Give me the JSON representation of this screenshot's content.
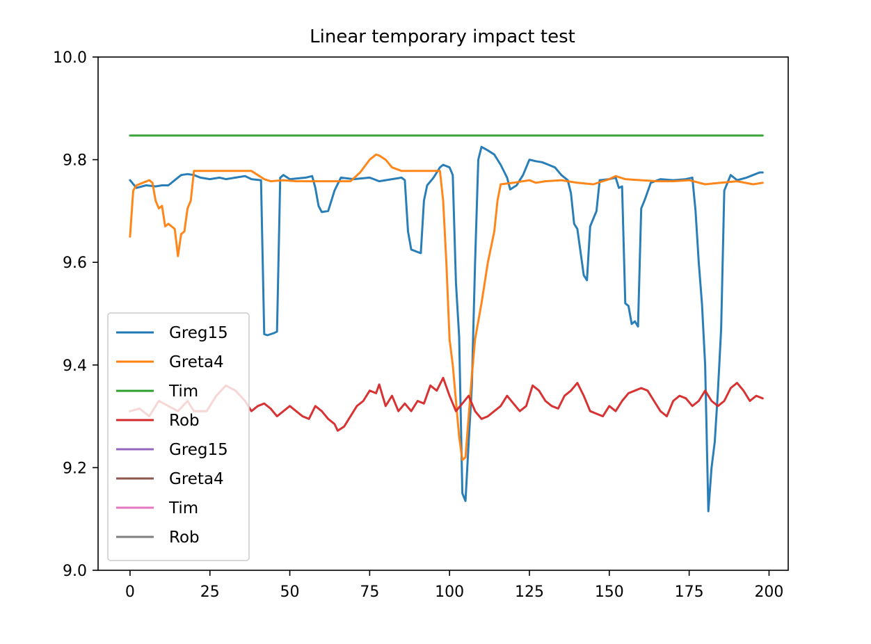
{
  "chart_data": {
    "type": "line",
    "title": "Linear temporary impact test",
    "xlabel": "",
    "ylabel": "",
    "xlim": [
      -10,
      206
    ],
    "ylim": [
      9.0,
      10.0
    ],
    "xticks": [
      0,
      25,
      50,
      75,
      100,
      125,
      150,
      175,
      200
    ],
    "yticks": [
      9.0,
      9.2,
      9.4,
      9.6,
      9.8,
      10.0
    ],
    "xtick_labels": [
      "0",
      "25",
      "50",
      "75",
      "100",
      "125",
      "150",
      "175",
      "200"
    ],
    "ytick_labels": [
      "9.0",
      "9.2",
      "9.4",
      "9.6",
      "9.8",
      "10.0"
    ],
    "grid": false,
    "legend_position": "lower-left",
    "series": [
      {
        "name": "Greg15",
        "color": "#1f77b4",
        "points": [
          [
            0,
            9.76
          ],
          [
            2,
            9.745
          ],
          [
            5,
            9.75
          ],
          [
            8,
            9.748
          ],
          [
            10,
            9.75
          ],
          [
            12,
            9.75
          ],
          [
            14,
            9.76
          ],
          [
            16,
            9.77
          ],
          [
            18,
            9.772
          ],
          [
            20,
            9.77
          ],
          [
            22,
            9.765
          ],
          [
            25,
            9.762
          ],
          [
            28,
            9.765
          ],
          [
            30,
            9.762
          ],
          [
            33,
            9.765
          ],
          [
            36,
            9.768
          ],
          [
            38,
            9.762
          ],
          [
            41,
            9.76
          ],
          [
            42,
            9.46
          ],
          [
            43,
            9.458
          ],
          [
            45,
            9.462
          ],
          [
            46,
            9.465
          ],
          [
            47,
            9.765
          ],
          [
            48,
            9.77
          ],
          [
            50,
            9.762
          ],
          [
            55,
            9.765
          ],
          [
            57,
            9.768
          ],
          [
            58,
            9.745
          ],
          [
            59,
            9.71
          ],
          [
            60,
            9.698
          ],
          [
            62,
            9.7
          ],
          [
            64,
            9.74
          ],
          [
            66,
            9.765
          ],
          [
            70,
            9.762
          ],
          [
            75,
            9.765
          ],
          [
            78,
            9.758
          ],
          [
            80,
            9.76
          ],
          [
            85,
            9.765
          ],
          [
            86,
            9.76
          ],
          [
            87,
            9.66
          ],
          [
            88,
            9.625
          ],
          [
            90,
            9.62
          ],
          [
            91,
            9.618
          ],
          [
            92,
            9.72
          ],
          [
            93,
            9.75
          ],
          [
            95,
            9.765
          ],
          [
            97,
            9.785
          ],
          [
            98,
            9.79
          ],
          [
            100,
            9.785
          ],
          [
            101,
            9.77
          ],
          [
            102,
            9.56
          ],
          [
            103,
            9.455
          ],
          [
            104,
            9.15
          ],
          [
            105,
            9.135
          ],
          [
            106,
            9.25
          ],
          [
            107,
            9.36
          ],
          [
            108,
            9.6
          ],
          [
            109,
            9.8
          ],
          [
            110,
            9.825
          ],
          [
            112,
            9.818
          ],
          [
            114,
            9.81
          ],
          [
            116,
            9.79
          ],
          [
            118,
            9.765
          ],
          [
            119,
            9.742
          ],
          [
            121,
            9.75
          ],
          [
            123,
            9.77
          ],
          [
            125,
            9.8
          ],
          [
            127,
            9.797
          ],
          [
            129,
            9.795
          ],
          [
            131,
            9.79
          ],
          [
            133,
            9.785
          ],
          [
            135,
            9.77
          ],
          [
            137,
            9.76
          ],
          [
            138,
            9.735
          ],
          [
            139,
            9.675
          ],
          [
            140,
            9.665
          ],
          [
            142,
            9.575
          ],
          [
            143,
            9.565
          ],
          [
            144,
            9.67
          ],
          [
            146,
            9.7
          ],
          [
            147,
            9.76
          ],
          [
            150,
            9.762
          ],
          [
            152,
            9.765
          ],
          [
            153,
            9.745
          ],
          [
            154,
            9.748
          ],
          [
            155,
            9.52
          ],
          [
            156,
            9.515
          ],
          [
            157,
            9.48
          ],
          [
            158,
            9.485
          ],
          [
            159,
            9.475
          ],
          [
            160,
            9.705
          ],
          [
            161,
            9.72
          ],
          [
            163,
            9.755
          ],
          [
            166,
            9.762
          ],
          [
            170,
            9.76
          ],
          [
            174,
            9.762
          ],
          [
            176,
            9.765
          ],
          [
            177,
            9.7
          ],
          [
            178,
            9.6
          ],
          [
            179,
            9.52
          ],
          [
            180,
            9.4
          ],
          [
            181,
            9.115
          ],
          [
            182,
            9.2
          ],
          [
            183,
            9.25
          ],
          [
            184,
            9.35
          ],
          [
            185,
            9.47
          ],
          [
            186,
            9.74
          ],
          [
            188,
            9.77
          ],
          [
            190,
            9.76
          ],
          [
            193,
            9.765
          ],
          [
            195,
            9.77
          ],
          [
            197,
            9.775
          ],
          [
            198,
            9.775
          ]
        ]
      },
      {
        "name": "Greta4",
        "color": "#ff7f0e",
        "points": [
          [
            0,
            9.65
          ],
          [
            1,
            9.74
          ],
          [
            2,
            9.75
          ],
          [
            4,
            9.755
          ],
          [
            6,
            9.76
          ],
          [
            7,
            9.755
          ],
          [
            8,
            9.72
          ],
          [
            9,
            9.705
          ],
          [
            10,
            9.71
          ],
          [
            11,
            9.67
          ],
          [
            12,
            9.675
          ],
          [
            13,
            9.67
          ],
          [
            14,
            9.665
          ],
          [
            15,
            9.612
          ],
          [
            16,
            9.655
          ],
          [
            17,
            9.66
          ],
          [
            18,
            9.705
          ],
          [
            19,
            9.72
          ],
          [
            20,
            9.778
          ],
          [
            25,
            9.778
          ],
          [
            30,
            9.778
          ],
          [
            35,
            9.778
          ],
          [
            38,
            9.778
          ],
          [
            40,
            9.77
          ],
          [
            42,
            9.762
          ],
          [
            44,
            9.758
          ],
          [
            48,
            9.76
          ],
          [
            52,
            9.758
          ],
          [
            56,
            9.758
          ],
          [
            60,
            9.758
          ],
          [
            65,
            9.758
          ],
          [
            69,
            9.758
          ],
          [
            72,
            9.775
          ],
          [
            75,
            9.8
          ],
          [
            77,
            9.81
          ],
          [
            78,
            9.808
          ],
          [
            80,
            9.8
          ],
          [
            82,
            9.785
          ],
          [
            85,
            9.778
          ],
          [
            90,
            9.778
          ],
          [
            95,
            9.778
          ],
          [
            97,
            9.778
          ],
          [
            98,
            9.72
          ],
          [
            99,
            9.6
          ],
          [
            100,
            9.45
          ],
          [
            101,
            9.4
          ],
          [
            102,
            9.33
          ],
          [
            103,
            9.26
          ],
          [
            104,
            9.215
          ],
          [
            105,
            9.22
          ],
          [
            106,
            9.3
          ],
          [
            107,
            9.38
          ],
          [
            108,
            9.45
          ],
          [
            110,
            9.52
          ],
          [
            112,
            9.6
          ],
          [
            114,
            9.66
          ],
          [
            115,
            9.72
          ],
          [
            116,
            9.752
          ],
          [
            120,
            9.755
          ],
          [
            125,
            9.76
          ],
          [
            127,
            9.755
          ],
          [
            130,
            9.758
          ],
          [
            135,
            9.76
          ],
          [
            140,
            9.755
          ],
          [
            145,
            9.752
          ],
          [
            150,
            9.762
          ],
          [
            152,
            9.768
          ],
          [
            155,
            9.762
          ],
          [
            160,
            9.76
          ],
          [
            165,
            9.758
          ],
          [
            170,
            9.758
          ],
          [
            175,
            9.76
          ],
          [
            180,
            9.752
          ],
          [
            185,
            9.755
          ],
          [
            190,
            9.758
          ],
          [
            195,
            9.752
          ],
          [
            198,
            9.755
          ]
        ]
      },
      {
        "name": "Tim",
        "color": "#2ca02c",
        "points": [
          [
            0,
            9.847
          ],
          [
            25,
            9.847
          ],
          [
            50,
            9.847
          ],
          [
            75,
            9.847
          ],
          [
            100,
            9.847
          ],
          [
            125,
            9.847
          ],
          [
            150,
            9.847
          ],
          [
            175,
            9.847
          ],
          [
            198,
            9.847
          ]
        ]
      },
      {
        "name": "Rob",
        "color": "#d62728",
        "points": [
          [
            0,
            9.31
          ],
          [
            3,
            9.315
          ],
          [
            6,
            9.3
          ],
          [
            9,
            9.33
          ],
          [
            12,
            9.32
          ],
          [
            15,
            9.31
          ],
          [
            18,
            9.33
          ],
          [
            20,
            9.31
          ],
          [
            24,
            9.31
          ],
          [
            27,
            9.34
          ],
          [
            30,
            9.36
          ],
          [
            33,
            9.35
          ],
          [
            36,
            9.33
          ],
          [
            38,
            9.31
          ],
          [
            40,
            9.32
          ],
          [
            42,
            9.325
          ],
          [
            44,
            9.315
          ],
          [
            46,
            9.3
          ],
          [
            48,
            9.31
          ],
          [
            50,
            9.32
          ],
          [
            52,
            9.31
          ],
          [
            54,
            9.3
          ],
          [
            56,
            9.295
          ],
          [
            58,
            9.32
          ],
          [
            60,
            9.31
          ],
          [
            62,
            9.295
          ],
          [
            64,
            9.285
          ],
          [
            65,
            9.272
          ],
          [
            67,
            9.28
          ],
          [
            69,
            9.3
          ],
          [
            71,
            9.32
          ],
          [
            73,
            9.33
          ],
          [
            75,
            9.35
          ],
          [
            77,
            9.345
          ],
          [
            78,
            9.362
          ],
          [
            80,
            9.32
          ],
          [
            82,
            9.34
          ],
          [
            84,
            9.31
          ],
          [
            86,
            9.325
          ],
          [
            88,
            9.31
          ],
          [
            90,
            9.33
          ],
          [
            92,
            9.325
          ],
          [
            94,
            9.36
          ],
          [
            96,
            9.35
          ],
          [
            98,
            9.375
          ],
          [
            100,
            9.34
          ],
          [
            102,
            9.31
          ],
          [
            104,
            9.325
          ],
          [
            106,
            9.34
          ],
          [
            108,
            9.31
          ],
          [
            110,
            9.295
          ],
          [
            112,
            9.3
          ],
          [
            114,
            9.31
          ],
          [
            116,
            9.32
          ],
          [
            118,
            9.34
          ],
          [
            120,
            9.325
          ],
          [
            122,
            9.31
          ],
          [
            124,
            9.32
          ],
          [
            126,
            9.36
          ],
          [
            128,
            9.35
          ],
          [
            130,
            9.33
          ],
          [
            132,
            9.32
          ],
          [
            134,
            9.315
          ],
          [
            136,
            9.34
          ],
          [
            138,
            9.35
          ],
          [
            140,
            9.365
          ],
          [
            142,
            9.34
          ],
          [
            144,
            9.31
          ],
          [
            146,
            9.305
          ],
          [
            148,
            9.3
          ],
          [
            150,
            9.32
          ],
          [
            152,
            9.31
          ],
          [
            154,
            9.33
          ],
          [
            156,
            9.345
          ],
          [
            158,
            9.35
          ],
          [
            160,
            9.355
          ],
          [
            162,
            9.35
          ],
          [
            164,
            9.33
          ],
          [
            166,
            9.31
          ],
          [
            168,
            9.3
          ],
          [
            170,
            9.33
          ],
          [
            172,
            9.34
          ],
          [
            174,
            9.335
          ],
          [
            176,
            9.32
          ],
          [
            178,
            9.33
          ],
          [
            180,
            9.35
          ],
          [
            182,
            9.33
          ],
          [
            184,
            9.32
          ],
          [
            186,
            9.33
          ],
          [
            188,
            9.355
          ],
          [
            190,
            9.365
          ],
          [
            192,
            9.35
          ],
          [
            194,
            9.33
          ],
          [
            196,
            9.34
          ],
          [
            198,
            9.335
          ]
        ]
      },
      {
        "name": "Greg15",
        "color": "#9467bd",
        "points": []
      },
      {
        "name": "Greta4",
        "color": "#8c564b",
        "points": []
      },
      {
        "name": "Tim",
        "color": "#e377c2",
        "points": []
      },
      {
        "name": "Rob",
        "color": "#7f7f7f",
        "points": []
      }
    ]
  }
}
